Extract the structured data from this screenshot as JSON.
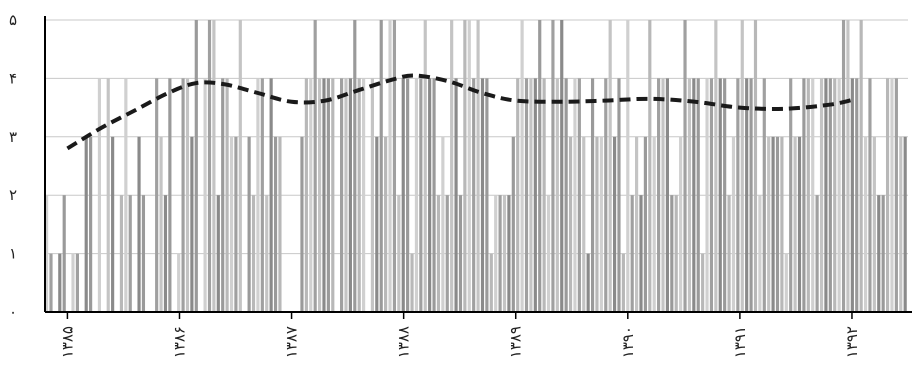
{
  "chart_data": {
    "type": "bar",
    "title": "",
    "xlabel": "",
    "ylabel": "",
    "ylim": [
      0,
      5
    ],
    "y_ticks": [
      "۰",
      "۱",
      "۲",
      "۳",
      "۴",
      "۵"
    ],
    "x_tick_labels": [
      "۱۳۸۵",
      "۱۳۸۶",
      "۱۳۸۷",
      "۱۳۸۸",
      "۱۳۸۹",
      "۱۳۹۰",
      "۱۳۹۱",
      "۱۳۹۲"
    ],
    "x_range": [
      1384.8,
      1392.5
    ],
    "grid": "horizontal",
    "legend": "none",
    "bars_series": {
      "start": 1384.8,
      "end": 1392.5,
      "values": [
        2,
        1,
        0,
        1,
        2,
        0,
        1,
        1,
        0,
        3,
        3,
        0,
        4,
        0,
        4,
        3,
        0,
        2,
        4,
        2,
        0,
        3,
        2,
        0,
        0,
        4,
        3,
        2,
        4,
        0,
        1,
        4,
        4,
        3,
        5,
        0,
        4,
        5,
        5,
        2,
        4,
        4,
        3,
        3,
        5,
        0,
        3,
        2,
        4,
        4,
        2,
        4,
        3,
        3,
        0,
        0,
        0,
        0,
        3,
        4,
        4,
        5,
        4,
        4,
        4,
        4,
        0,
        4,
        4,
        4,
        5,
        4,
        4,
        0,
        4,
        3,
        5,
        3,
        5,
        5,
        2,
        4,
        4,
        1,
        4,
        4,
        5,
        4,
        4,
        2,
        3,
        2,
        5,
        4,
        2,
        5,
        5,
        4,
        5,
        4,
        4,
        1,
        2,
        2,
        2,
        2,
        3,
        4,
        5,
        4,
        4,
        4,
        5,
        4,
        2,
        5,
        4,
        5,
        4,
        3,
        4,
        4,
        3,
        1,
        4,
        3,
        3,
        4,
        5,
        3,
        4,
        1,
        5,
        2,
        3,
        2,
        3,
        5,
        3,
        4,
        4,
        4,
        2,
        2,
        3,
        5,
        4,
        4,
        4,
        1,
        4,
        4,
        5,
        4,
        4,
        2,
        3,
        4,
        5,
        4,
        4,
        5,
        2,
        4,
        3,
        3,
        3,
        3,
        1,
        4,
        3,
        3,
        4,
        4,
        4,
        2,
        4,
        4,
        4,
        4,
        4,
        5,
        5,
        4,
        4,
        5,
        3,
        4,
        3,
        2,
        2,
        4,
        4,
        4,
        3,
        3
      ],
      "colors": [
        "#d0d0d0",
        "#b8b8b8",
        "#a0a0a0",
        "#8a8a8a",
        "#c4c4c4",
        "#9a9a9a"
      ]
    },
    "series": [
      {
        "x": [
          1385.0,
          1385.3,
          1385.6,
          1385.9,
          1386.15,
          1386.4,
          1386.7,
          1387.0,
          1387.3,
          1387.6,
          1387.9,
          1388.1,
          1388.4,
          1388.7,
          1389.0,
          1389.4,
          1389.8,
          1390.2,
          1390.6,
          1391.0,
          1391.4,
          1391.8,
          1392.0
        ],
        "values": [
          2.8,
          3.15,
          3.45,
          3.75,
          3.92,
          3.9,
          3.75,
          3.6,
          3.62,
          3.8,
          3.98,
          4.05,
          3.95,
          3.75,
          3.62,
          3.6,
          3.62,
          3.65,
          3.6,
          3.5,
          3.48,
          3.55,
          3.63
        ]
      }
    ]
  }
}
